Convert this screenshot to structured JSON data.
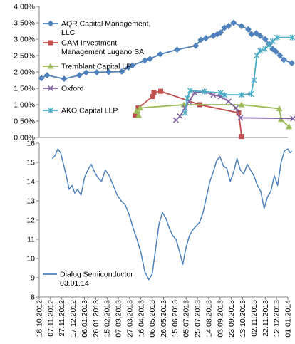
{
  "chart_data": [
    {
      "type": "line",
      "title": "",
      "xlabel": "",
      "ylabel": "",
      "x_type": "date",
      "xlim": [
        "2012-10-18",
        "2014-01-01"
      ],
      "ylim": [
        0,
        0.04
      ],
      "y_ticks": [
        "0,00%",
        "0,50%",
        "1,00%",
        "1,50%",
        "2,00%",
        "2,50%",
        "3,00%",
        "3,50%",
        "4,00%"
      ],
      "grid": false,
      "legend": "left, inside plot",
      "series": [
        {
          "name": "AQR Capital Management, LLC",
          "color": "#4f81bd",
          "marker": "diamond",
          "points": [
            [
              "2012-10-22",
              0.0181
            ],
            [
              "2012-11-01",
              0.019
            ],
            [
              "2012-12-01",
              0.0179
            ],
            [
              "2012-12-28",
              0.019
            ],
            [
              "2013-01-09",
              0.0198
            ],
            [
              "2013-01-28",
              0.0199
            ],
            [
              "2013-02-18",
              0.02
            ],
            [
              "2013-03-13",
              0.0201
            ],
            [
              "2013-03-25",
              0.0214
            ],
            [
              "2013-04-01",
              0.022
            ],
            [
              "2013-04-23",
              0.0235
            ],
            [
              "2013-05-02",
              0.024
            ],
            [
              "2013-05-20",
              0.0254
            ],
            [
              "2013-06-19",
              0.0268
            ],
            [
              "2013-07-22",
              0.028
            ],
            [
              "2013-07-31",
              0.0298
            ],
            [
              "2013-08-09",
              0.0303
            ],
            [
              "2013-08-22",
              0.031
            ],
            [
              "2013-08-29",
              0.0315
            ],
            [
              "2013-09-04",
              0.032
            ],
            [
              "2013-09-11",
              0.0335
            ],
            [
              "2013-09-18",
              0.034
            ],
            [
              "2013-09-27",
              0.035
            ],
            [
              "2013-10-11",
              0.034
            ],
            [
              "2013-10-23",
              0.033
            ],
            [
              "2013-10-29",
              0.0315
            ],
            [
              "2013-11-06",
              0.0318
            ],
            [
              "2013-11-13",
              0.031
            ],
            [
              "2013-11-22",
              0.03
            ],
            [
              "2013-11-29",
              0.0285
            ],
            [
              "2013-12-05",
              0.027
            ],
            [
              "2013-12-11",
              0.0262
            ],
            [
              "2013-12-18",
              0.025
            ],
            [
              "2013-12-25",
              0.0237
            ],
            [
              "2014-01-08",
              0.0227
            ]
          ]
        },
        {
          "name": "GAM Investment Management Lugano SA",
          "color": "#c0504d",
          "marker": "square",
          "points": [
            [
              "2013-04-06",
              0.0068
            ],
            [
              "2013-04-11",
              0.009
            ],
            [
              "2013-05-07",
              0.0125
            ],
            [
              "2013-05-09",
              0.0137
            ],
            [
              "2013-05-21",
              0.0141
            ],
            [
              "2013-07-29",
              0.01
            ],
            [
              "2013-10-06",
              0.0075
            ],
            [
              "2013-10-11",
              0.0003
            ]
          ]
        },
        {
          "name": "Tremblant Capital LP",
          "color": "#9bbb59",
          "marker": "triangle",
          "points": [
            [
              "2013-04-08",
              0.008
            ],
            [
              "2013-04-12",
              0.0067
            ],
            [
              "2013-04-14",
              0.009
            ],
            [
              "2013-07-01",
              0.01
            ],
            [
              "2013-10-11",
              0.01
            ],
            [
              "2013-12-17",
              0.0088
            ],
            [
              "2013-12-20",
              0.0055
            ],
            [
              "2014-01-03",
              0.0033
            ]
          ]
        },
        {
          "name": "Oxford",
          "color": "#8064a2",
          "marker": "x",
          "points": [
            [
              "2013-06-17",
              0.0053
            ],
            [
              "2013-06-24",
              0.0065
            ],
            [
              "2013-07-03",
              0.009
            ],
            [
              "2013-07-10",
              0.011
            ],
            [
              "2013-07-20",
              0.0136
            ],
            [
              "2013-08-06",
              0.014
            ],
            [
              "2013-08-22",
              0.013
            ],
            [
              "2013-09-04",
              0.0125
            ],
            [
              "2013-09-18",
              0.011
            ],
            [
              "2013-10-01",
              0.009
            ],
            [
              "2013-10-09",
              0.006
            ],
            [
              "2014-01-10",
              0.0058
            ]
          ]
        },
        {
          "name": "AKO Capital LLP",
          "color": "#4bacc6",
          "marker": "asterisk",
          "points": [
            [
              "2013-07-03",
              0.0075
            ],
            [
              "2013-07-07",
              0.012
            ],
            [
              "2013-07-12",
              0.0143
            ],
            [
              "2013-08-06",
              0.014
            ],
            [
              "2013-09-04",
              0.0136
            ],
            [
              "2013-09-11",
              0.013
            ],
            [
              "2013-10-11",
              0.013
            ],
            [
              "2013-10-28",
              0.0133
            ],
            [
              "2013-11-02",
              0.0175
            ],
            [
              "2013-11-07",
              0.025
            ],
            [
              "2013-11-13",
              0.0265
            ],
            [
              "2013-11-22",
              0.027
            ],
            [
              "2013-11-29",
              0.0282
            ],
            [
              "2013-12-05",
              0.0294
            ],
            [
              "2013-12-13",
              0.0305
            ],
            [
              "2014-01-09",
              0.0305
            ]
          ]
        }
      ],
      "legend_entries": [
        {
          "series": 0,
          "lines": [
            "AQR Capital Management,",
            "LLC"
          ]
        },
        {
          "series": 1,
          "lines": [
            "GAM Investment",
            "Management Lugano SA"
          ]
        },
        {
          "series": 2,
          "lines": [
            "Tremblant Capital LP"
          ]
        },
        {
          "series": 3,
          "lines": [
            "Oxford"
          ]
        },
        {
          "series": 4,
          "lines": [
            "AKO Capital LLP"
          ]
        }
      ]
    },
    {
      "type": "line",
      "title": "",
      "xlabel": "",
      "ylabel": "",
      "x_type": "date",
      "xlim": [
        "2012-10-18",
        "2014-01-01"
      ],
      "ylim": [
        8,
        16
      ],
      "y_ticks": [
        "8",
        "9",
        "10",
        "11",
        "12",
        "13",
        "14",
        "15",
        "16"
      ],
      "x_ticks": [
        "18.10.2012",
        "07.11.2012",
        "27.11.2012",
        "17.12.2012",
        "06.01.2013",
        "26.01.2013",
        "15.02.2013",
        "07.03.2013",
        "27.03.2013",
        "16.04.2013",
        "06.05.2013",
        "26.05.2013",
        "15.06.2013",
        "05.07.2013",
        "25.07.2013",
        "14.08.2013",
        "03.09.2013",
        "23.09.2013",
        "13.10.2013",
        "02.11.2013",
        "22.11.2013",
        "12.12.2013",
        "01.01.2014"
      ],
      "grid": false,
      "legend": "lower-left, inside plot",
      "series": [
        {
          "name": "Dialog Semiconductor",
          "name_line2": "03.01.14",
          "color": "#4f81bd",
          "points": [
            [
              "2012-11-10",
              15.2
            ],
            [
              "2012-11-15",
              15.35
            ],
            [
              "2012-11-20",
              15.7
            ],
            [
              "2012-11-25",
              15.5
            ],
            [
              "2012-11-30",
              14.9
            ],
            [
              "2012-12-05",
              14.3
            ],
            [
              "2012-12-10",
              13.6
            ],
            [
              "2012-12-15",
              13.8
            ],
            [
              "2012-12-20",
              13.4
            ],
            [
              "2012-12-25",
              13.6
            ],
            [
              "2012-12-31",
              13.3
            ],
            [
              "2013-01-06",
              14.2
            ],
            [
              "2013-01-12",
              14.6
            ],
            [
              "2013-01-18",
              14.9
            ],
            [
              "2013-01-24",
              14.5
            ],
            [
              "2013-01-30",
              14.2
            ],
            [
              "2013-02-05",
              14.0
            ],
            [
              "2013-02-12",
              14.6
            ],
            [
              "2013-02-19",
              14.3
            ],
            [
              "2013-02-26",
              13.8
            ],
            [
              "2013-03-05",
              13.3
            ],
            [
              "2013-03-12",
              13.0
            ],
            [
              "2013-03-19",
              12.8
            ],
            [
              "2013-03-26",
              12.3
            ],
            [
              "2013-04-02",
              11.6
            ],
            [
              "2013-04-09",
              11.0
            ],
            [
              "2013-04-16",
              10.3
            ],
            [
              "2013-04-23",
              9.3
            ],
            [
              "2013-04-30",
              8.9
            ],
            [
              "2013-05-06",
              9.2
            ],
            [
              "2013-05-12",
              10.5
            ],
            [
              "2013-05-18",
              11.8
            ],
            [
              "2013-05-24",
              12.4
            ],
            [
              "2013-05-30",
              12.1
            ],
            [
              "2013-06-05",
              11.6
            ],
            [
              "2013-06-11",
              11.2
            ],
            [
              "2013-06-17",
              11.0
            ],
            [
              "2013-06-23",
              10.4
            ],
            [
              "2013-06-29",
              9.7
            ],
            [
              "2013-07-05",
              10.6
            ],
            [
              "2013-07-11",
              11.2
            ],
            [
              "2013-07-17",
              11.5
            ],
            [
              "2013-07-23",
              11.7
            ],
            [
              "2013-07-29",
              11.9
            ],
            [
              "2013-08-04",
              12.4
            ],
            [
              "2013-08-10",
              13.2
            ],
            [
              "2013-08-16",
              14.0
            ],
            [
              "2013-08-22",
              14.5
            ],
            [
              "2013-08-28",
              15.1
            ],
            [
              "2013-09-03",
              15.3
            ],
            [
              "2013-09-09",
              14.8
            ],
            [
              "2013-09-15",
              14.7
            ],
            [
              "2013-09-21",
              14.0
            ],
            [
              "2013-09-27",
              14.5
            ],
            [
              "2013-10-03",
              15.2
            ],
            [
              "2013-10-09",
              14.6
            ],
            [
              "2013-10-15",
              14.4
            ],
            [
              "2013-10-21",
              14.9
            ],
            [
              "2013-10-27",
              14.6
            ],
            [
              "2013-11-02",
              14.3
            ],
            [
              "2013-11-08",
              13.8
            ],
            [
              "2013-11-14",
              13.5
            ],
            [
              "2013-11-20",
              12.6
            ],
            [
              "2013-11-26",
              13.2
            ],
            [
              "2013-12-02",
              13.5
            ],
            [
              "2013-12-08",
              14.3
            ],
            [
              "2013-12-14",
              13.8
            ],
            [
              "2013-12-20",
              15.0
            ],
            [
              "2013-12-26",
              15.6
            ],
            [
              "2014-01-01",
              15.7
            ],
            [
              "2014-01-05",
              15.5
            ],
            [
              "2014-01-08",
              15.6
            ]
          ]
        }
      ]
    }
  ]
}
